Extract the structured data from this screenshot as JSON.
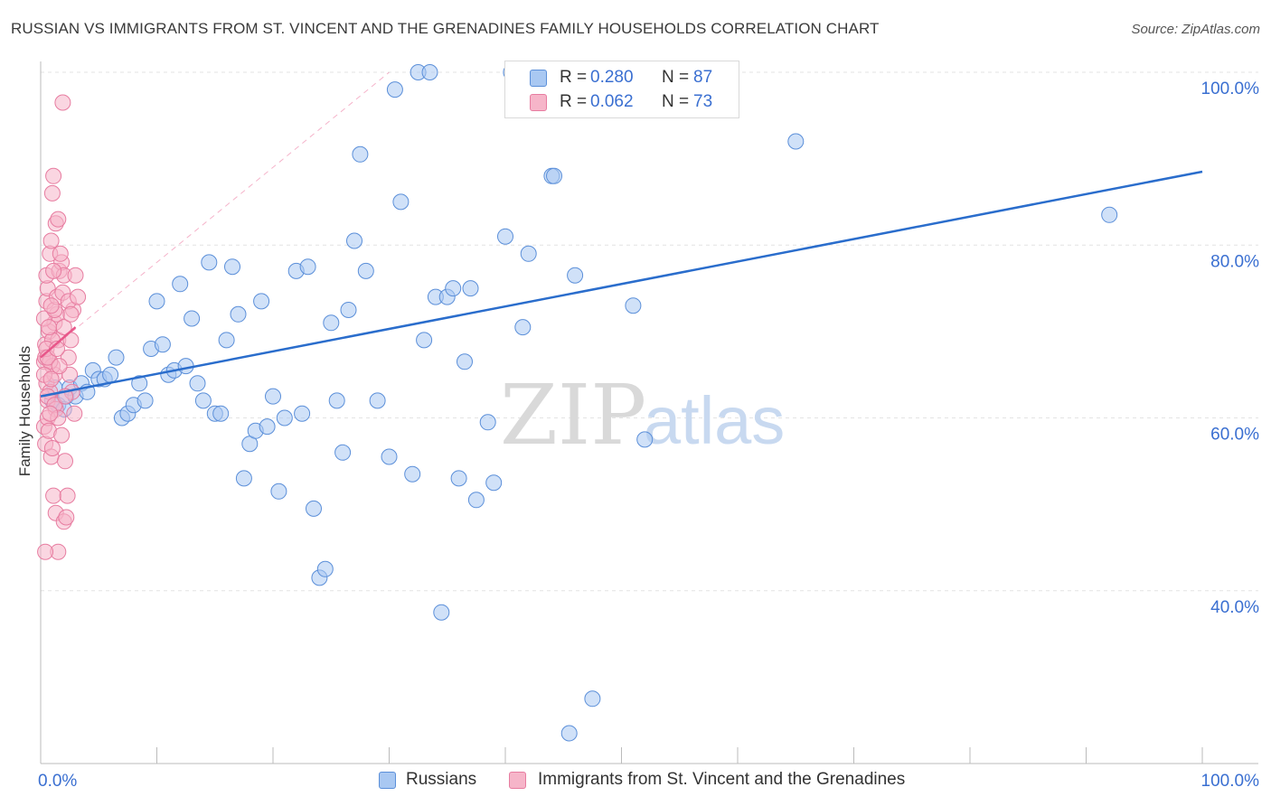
{
  "title": "RUSSIAN VS IMMIGRANTS FROM ST. VINCENT AND THE GRENADINES FAMILY HOUSEHOLDS CORRELATION CHART",
  "source": "Source: ZipAtlas.com",
  "watermark": {
    "zip": "ZIP",
    "atlas": "atlas"
  },
  "legend": {
    "r_label": "R =",
    "n_label": "N =",
    "series": [
      {
        "r": "0.280",
        "n": "87",
        "color": "#a9c8f2"
      },
      {
        "r": "0.062",
        "n": "73",
        "color": "#f6b5c9"
      }
    ]
  },
  "bottom_legend": [
    "Russians",
    "Immigrants from St. Vincent and the Grenadines"
  ],
  "colors": {
    "blue_fill": "#a9c8f2",
    "blue_stroke": "#5b8fd9",
    "blue_line": "#2a6dcc",
    "pink_fill": "#f6b5c9",
    "pink_stroke": "#e77ca0",
    "pink_line": "#e8578a",
    "axis_text": "#3a6fd1",
    "grid": "#e3e3e3"
  },
  "chart_data": {
    "type": "scatter",
    "ylabel": "Family Households",
    "xlabel": "",
    "xlim": [
      0,
      100
    ],
    "ylim": [
      20,
      100
    ],
    "x_tick_labels": [
      "0.0%",
      "100.0%"
    ],
    "y_ticks": [
      40,
      60,
      80,
      100
    ],
    "y_tick_labels": [
      "40.0%",
      "60.0%",
      "80.0%",
      "100.0%"
    ],
    "grid": true,
    "series": [
      {
        "name": "Russians",
        "color": "#a9c8f2",
        "points": [
          [
            1.0,
            62.0
          ],
          [
            1.2,
            63.5
          ],
          [
            1.5,
            61.5
          ],
          [
            2.0,
            61.0
          ],
          [
            2.2,
            62.5
          ],
          [
            2.5,
            63.5
          ],
          [
            3.0,
            62.5
          ],
          [
            3.5,
            64.0
          ],
          [
            4.0,
            63.0
          ],
          [
            4.5,
            65.5
          ],
          [
            5.0,
            64.5
          ],
          [
            5.5,
            64.5
          ],
          [
            6.0,
            65.0
          ],
          [
            6.5,
            67.0
          ],
          [
            7.0,
            60.0
          ],
          [
            7.5,
            60.5
          ],
          [
            8.0,
            61.5
          ],
          [
            8.5,
            64.0
          ],
          [
            9.0,
            62.0
          ],
          [
            9.5,
            68.0
          ],
          [
            10.0,
            73.5
          ],
          [
            10.5,
            68.5
          ],
          [
            11.0,
            65.0
          ],
          [
            11.5,
            65.5
          ],
          [
            12.0,
            75.5
          ],
          [
            12.5,
            66.0
          ],
          [
            13.0,
            71.5
          ],
          [
            13.5,
            64.0
          ],
          [
            14.0,
            62.0
          ],
          [
            14.5,
            78.0
          ],
          [
            15.0,
            60.5
          ],
          [
            15.5,
            60.5
          ],
          [
            16.0,
            69.0
          ],
          [
            16.5,
            77.5
          ],
          [
            17.0,
            72.0
          ],
          [
            17.5,
            53.0
          ],
          [
            18.0,
            57.0
          ],
          [
            18.5,
            58.5
          ],
          [
            19.0,
            73.5
          ],
          [
            19.5,
            59.0
          ],
          [
            20.0,
            62.5
          ],
          [
            20.5,
            51.5
          ],
          [
            21.0,
            60.0
          ],
          [
            22.0,
            77.0
          ],
          [
            22.5,
            60.5
          ],
          [
            23.0,
            77.5
          ],
          [
            23.5,
            49.5
          ],
          [
            24.0,
            41.5
          ],
          [
            24.5,
            42.5
          ],
          [
            25.0,
            71.0
          ],
          [
            25.5,
            62.0
          ],
          [
            26.0,
            56.0
          ],
          [
            26.5,
            72.5
          ],
          [
            27.0,
            80.5
          ],
          [
            27.5,
            90.5
          ],
          [
            28.0,
            77.0
          ],
          [
            29.0,
            62.0
          ],
          [
            30.0,
            55.5
          ],
          [
            30.5,
            98.0
          ],
          [
            31.0,
            85.0
          ],
          [
            32.0,
            53.5
          ],
          [
            32.5,
            100.0
          ],
          [
            33.0,
            69.0
          ],
          [
            33.5,
            100.0
          ],
          [
            34.0,
            74.0
          ],
          [
            34.5,
            37.5
          ],
          [
            35.0,
            74.0
          ],
          [
            35.5,
            75.0
          ],
          [
            36.0,
            53.0
          ],
          [
            36.5,
            66.5
          ],
          [
            37.0,
            75.0
          ],
          [
            37.5,
            50.5
          ],
          [
            38.5,
            59.5
          ],
          [
            39.0,
            52.5
          ],
          [
            40.0,
            81.0
          ],
          [
            40.5,
            100.0
          ],
          [
            41.5,
            70.5
          ],
          [
            42.0,
            79.0
          ],
          [
            44.0,
            88.0
          ],
          [
            44.2,
            88.0
          ],
          [
            45.5,
            23.5
          ],
          [
            46.0,
            76.5
          ],
          [
            47.5,
            27.5
          ],
          [
            51.0,
            73.0
          ],
          [
            52.0,
            57.5
          ],
          [
            65.0,
            92.0
          ],
          [
            92.0,
            83.5
          ]
        ]
      },
      {
        "name": "Immigrants from St. Vincent and the Grenadines",
        "color": "#f6b5c9",
        "points": [
          [
            0.3,
            66.5
          ],
          [
            0.4,
            68.5
          ],
          [
            0.5,
            64.0
          ],
          [
            0.6,
            62.0
          ],
          [
            0.7,
            70.0
          ],
          [
            0.3,
            59.0
          ],
          [
            0.5,
            73.5
          ],
          [
            0.6,
            75.0
          ],
          [
            0.4,
            67.0
          ],
          [
            0.8,
            79.0
          ],
          [
            0.9,
            80.5
          ],
          [
            1.0,
            86.0
          ],
          [
            1.1,
            88.0
          ],
          [
            1.2,
            65.0
          ],
          [
            1.3,
            61.0
          ],
          [
            0.4,
            57.0
          ],
          [
            0.6,
            60.0
          ],
          [
            0.8,
            63.0
          ],
          [
            1.0,
            66.0
          ],
          [
            1.2,
            71.0
          ],
          [
            1.4,
            72.0
          ],
          [
            1.5,
            69.0
          ],
          [
            0.3,
            71.5
          ],
          [
            0.5,
            76.5
          ],
          [
            0.7,
            58.5
          ],
          [
            0.9,
            55.5
          ],
          [
            1.1,
            51.0
          ],
          [
            1.3,
            49.0
          ],
          [
            1.5,
            44.5
          ],
          [
            0.4,
            44.5
          ],
          [
            0.6,
            62.5
          ],
          [
            0.8,
            66.5
          ],
          [
            1.0,
            69.0
          ],
          [
            1.2,
            72.5
          ],
          [
            1.4,
            74.0
          ],
          [
            1.6,
            77.0
          ],
          [
            1.8,
            78.0
          ],
          [
            2.0,
            76.5
          ],
          [
            0.5,
            68.0
          ],
          [
            0.7,
            70.5
          ],
          [
            0.9,
            73.0
          ],
          [
            1.1,
            77.0
          ],
          [
            1.3,
            82.5
          ],
          [
            1.5,
            83.0
          ],
          [
            1.7,
            79.0
          ],
          [
            1.9,
            74.5
          ],
          [
            2.0,
            70.5
          ],
          [
            0.3,
            65.0
          ],
          [
            0.6,
            67.0
          ],
          [
            0.9,
            64.5
          ],
          [
            1.2,
            61.5
          ],
          [
            1.5,
            60.0
          ],
          [
            1.8,
            58.0
          ],
          [
            2.1,
            55.0
          ],
          [
            2.3,
            51.0
          ],
          [
            2.0,
            48.0
          ],
          [
            2.2,
            48.5
          ],
          [
            2.4,
            67.0
          ],
          [
            2.6,
            69.0
          ],
          [
            2.8,
            72.5
          ],
          [
            3.0,
            76.5
          ],
          [
            2.5,
            65.0
          ],
          [
            2.7,
            63.0
          ],
          [
            2.9,
            60.5
          ],
          [
            2.4,
            73.5
          ],
          [
            1.6,
            66.0
          ],
          [
            1.4,
            68.0
          ],
          [
            0.8,
            60.5
          ],
          [
            1.0,
            56.5
          ],
          [
            1.9,
            96.5
          ],
          [
            2.6,
            72.0
          ],
          [
            3.2,
            74.0
          ],
          [
            2.1,
            62.5
          ]
        ]
      }
    ],
    "trend_lines": [
      {
        "series": "Russians",
        "from": [
          0,
          62.5
        ],
        "to": [
          100,
          88.5
        ],
        "style": "solid"
      },
      {
        "series": "Immigrants from St. Vincent and the Grenadines",
        "from": [
          0,
          67.0
        ],
        "to": [
          3.0,
          70.5
        ],
        "style": "solid"
      },
      {
        "series": "Immigrants from St. Vincent and the Grenadines",
        "from": [
          0,
          67.0
        ],
        "to": [
          30.0,
          100.0
        ],
        "style": "dashed"
      }
    ]
  }
}
